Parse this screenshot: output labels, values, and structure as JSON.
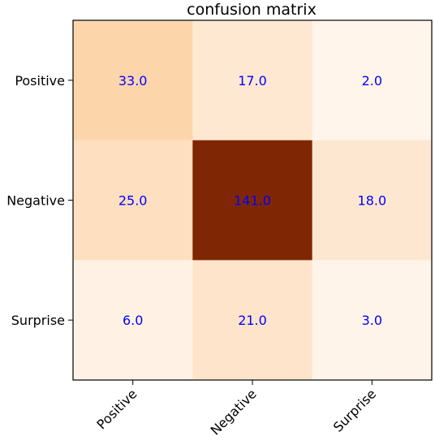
{
  "chart_data": {
    "type": "heatmap",
    "title": "confusion matrix",
    "x_categories": [
      "Positive",
      "Negative",
      "Surprise"
    ],
    "y_categories": [
      "Positive",
      "Negative",
      "Surprise"
    ],
    "values": [
      [
        33.0,
        17.0,
        2.0
      ],
      [
        25.0,
        141.0,
        18.0
      ],
      [
        6.0,
        21.0,
        3.0
      ]
    ],
    "cell_labels": [
      [
        "33.0",
        "17.0",
        "2.0"
      ],
      [
        "25.0",
        "141.0",
        "18.0"
      ],
      [
        "6.0",
        "21.0",
        "3.0"
      ]
    ],
    "colormap": "Oranges",
    "vmin": 2.0,
    "vmax": 141.0,
    "annotation_color": "#0000ff"
  }
}
